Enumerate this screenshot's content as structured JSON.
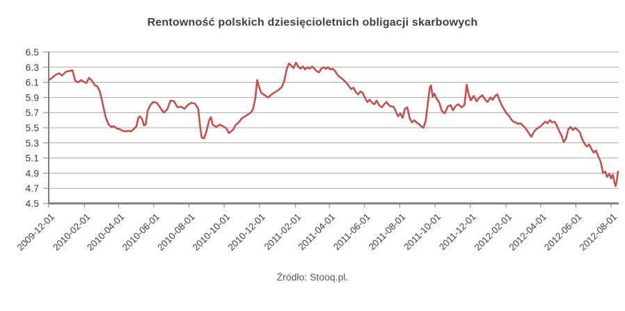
{
  "chart_data": {
    "type": "line",
    "title": "Rentowność polskich dziesięcioletnich obligacji skarbowych",
    "source": "Źródło: Stooq.pl.",
    "xlabel": "",
    "ylabel": "",
    "ylim": [
      4.5,
      6.5
    ],
    "yticks": [
      4.5,
      4.7,
      4.9,
      5.1,
      5.3,
      5.5,
      5.7,
      5.9,
      6.1,
      6.3,
      6.5
    ],
    "xticks": [
      "2009-12-01",
      "2010-02-01",
      "2010-04-01",
      "2010-06-01",
      "2010-08-01",
      "2010-10-01",
      "2010-12-01",
      "2011-02-01",
      "2011-04-01",
      "2011-06-01",
      "2011-08-01",
      "2011-10-01",
      "2011-12-01",
      "2012-02-01",
      "2012-04-01",
      "2012-06-01",
      "2012-08-01"
    ],
    "grid": "horizontal",
    "legend_position": "none",
    "colors": {
      "line": "#C0504D",
      "grid": "#A6A6A6",
      "axis": "#808080",
      "tick_text": "#3F3F3F",
      "title_text": "#3F3F3F",
      "source_text": "#595959"
    },
    "series": [
      {
        "name": "rentownosc-obligacji-10y",
        "color": "#C0504D",
        "points": [
          [
            "2009-12-01",
            6.13
          ],
          [
            "2009-12-07",
            6.16
          ],
          [
            "2009-12-13",
            6.2
          ],
          [
            "2009-12-19",
            6.22
          ],
          [
            "2009-12-24",
            6.19
          ],
          [
            "2009-12-31",
            6.24
          ],
          [
            "2010-01-06",
            6.25
          ],
          [
            "2010-01-11",
            6.26
          ],
          [
            "2010-01-16",
            6.12
          ],
          [
            "2010-01-21",
            6.1
          ],
          [
            "2010-01-26",
            6.13
          ],
          [
            "2010-01-30",
            6.11
          ],
          [
            "2010-02-04",
            6.09
          ],
          [
            "2010-02-09",
            6.16
          ],
          [
            "2010-02-14",
            6.12
          ],
          [
            "2010-02-19",
            6.06
          ],
          [
            "2010-02-23",
            6.05
          ],
          [
            "2010-02-28",
            5.97
          ],
          [
            "2010-03-05",
            5.8
          ],
          [
            "2010-03-10",
            5.63
          ],
          [
            "2010-03-15",
            5.54
          ],
          [
            "2010-03-20",
            5.51
          ],
          [
            "2010-03-24",
            5.52
          ],
          [
            "2010-03-29",
            5.49
          ],
          [
            "2010-04-03",
            5.48
          ],
          [
            "2010-04-08",
            5.46
          ],
          [
            "2010-04-13",
            5.45
          ],
          [
            "2010-04-18",
            5.46
          ],
          [
            "2010-04-22",
            5.45
          ],
          [
            "2010-04-27",
            5.48
          ],
          [
            "2010-05-02",
            5.52
          ],
          [
            "2010-05-05",
            5.63
          ],
          [
            "2010-05-08",
            5.65
          ],
          [
            "2010-05-12",
            5.61
          ],
          [
            "2010-05-15",
            5.53
          ],
          [
            "2010-05-18",
            5.54
          ],
          [
            "2010-05-21",
            5.72
          ],
          [
            "2010-05-26",
            5.8
          ],
          [
            "2010-05-31",
            5.84
          ],
          [
            "2010-06-06",
            5.83
          ],
          [
            "2010-06-12",
            5.77
          ],
          [
            "2010-06-18",
            5.7
          ],
          [
            "2010-06-24",
            5.74
          ],
          [
            "2010-06-30",
            5.86
          ],
          [
            "2010-07-06",
            5.85
          ],
          [
            "2010-07-12",
            5.77
          ],
          [
            "2010-07-18",
            5.78
          ],
          [
            "2010-07-24",
            5.75
          ],
          [
            "2010-07-30",
            5.8
          ],
          [
            "2010-08-05",
            5.83
          ],
          [
            "2010-08-11",
            5.82
          ],
          [
            "2010-08-17",
            5.75
          ],
          [
            "2010-08-20",
            5.54
          ],
          [
            "2010-08-23",
            5.37
          ],
          [
            "2010-08-27",
            5.36
          ],
          [
            "2010-08-31",
            5.45
          ],
          [
            "2010-09-05",
            5.6
          ],
          [
            "2010-09-08",
            5.64
          ],
          [
            "2010-09-11",
            5.54
          ],
          [
            "2010-09-17",
            5.51
          ],
          [
            "2010-09-23",
            5.54
          ],
          [
            "2010-09-29",
            5.52
          ],
          [
            "2010-10-05",
            5.49
          ],
          [
            "2010-10-09",
            5.43
          ],
          [
            "2010-10-13",
            5.45
          ],
          [
            "2010-10-17",
            5.48
          ],
          [
            "2010-10-21",
            5.54
          ],
          [
            "2010-10-26",
            5.57
          ],
          [
            "2010-10-31",
            5.62
          ],
          [
            "2010-11-04",
            5.64
          ],
          [
            "2010-11-10",
            5.67
          ],
          [
            "2010-11-16",
            5.7
          ],
          [
            "2010-11-20",
            5.75
          ],
          [
            "2010-11-24",
            5.9
          ],
          [
            "2010-11-27",
            6.13
          ],
          [
            "2010-11-30",
            6.05
          ],
          [
            "2010-12-04",
            5.96
          ],
          [
            "2010-12-10",
            5.93
          ],
          [
            "2010-12-16",
            5.9
          ],
          [
            "2010-12-22",
            5.94
          ],
          [
            "2010-12-28",
            5.97
          ],
          [
            "2011-01-03",
            6.0
          ],
          [
            "2011-01-09",
            6.04
          ],
          [
            "2011-01-13",
            6.12
          ],
          [
            "2011-01-17",
            6.27
          ],
          [
            "2011-01-21",
            6.35
          ],
          [
            "2011-01-25",
            6.32
          ],
          [
            "2011-01-29",
            6.29
          ],
          [
            "2011-02-02",
            6.36
          ],
          [
            "2011-02-06",
            6.31
          ],
          [
            "2011-02-10",
            6.28
          ],
          [
            "2011-02-14",
            6.31
          ],
          [
            "2011-02-18",
            6.27
          ],
          [
            "2011-02-22",
            6.3
          ],
          [
            "2011-02-26",
            6.28
          ],
          [
            "2011-03-02",
            6.31
          ],
          [
            "2011-03-06",
            6.28
          ],
          [
            "2011-03-10",
            6.25
          ],
          [
            "2011-03-14",
            6.23
          ],
          [
            "2011-03-18",
            6.28
          ],
          [
            "2011-03-22",
            6.3
          ],
          [
            "2011-03-26",
            6.28
          ],
          [
            "2011-03-30",
            6.3
          ],
          [
            "2011-04-03",
            6.27
          ],
          [
            "2011-04-07",
            6.28
          ],
          [
            "2011-04-11",
            6.25
          ],
          [
            "2011-04-15",
            6.2
          ],
          [
            "2011-04-19",
            6.17
          ],
          [
            "2011-04-23",
            6.15
          ],
          [
            "2011-04-27",
            6.12
          ],
          [
            "2011-05-01",
            6.09
          ],
          [
            "2011-05-05",
            6.05
          ],
          [
            "2011-05-09",
            6.01
          ],
          [
            "2011-05-13",
            6.03
          ],
          [
            "2011-05-17",
            5.97
          ],
          [
            "2011-05-21",
            5.94
          ],
          [
            "2011-05-25",
            5.98
          ],
          [
            "2011-05-29",
            5.96
          ],
          [
            "2011-06-02",
            5.89
          ],
          [
            "2011-06-06",
            5.84
          ],
          [
            "2011-06-10",
            5.87
          ],
          [
            "2011-06-14",
            5.83
          ],
          [
            "2011-06-18",
            5.81
          ],
          [
            "2011-06-22",
            5.86
          ],
          [
            "2011-06-26",
            5.8
          ],
          [
            "2011-07-01",
            5.77
          ],
          [
            "2011-07-05",
            5.81
          ],
          [
            "2011-07-09",
            5.84
          ],
          [
            "2011-07-13",
            5.8
          ],
          [
            "2011-07-17",
            5.78
          ],
          [
            "2011-07-21",
            5.78
          ],
          [
            "2011-07-25",
            5.72
          ],
          [
            "2011-07-29",
            5.65
          ],
          [
            "2011-08-02",
            5.69
          ],
          [
            "2011-08-06",
            5.63
          ],
          [
            "2011-08-10",
            5.75
          ],
          [
            "2011-08-14",
            5.77
          ],
          [
            "2011-08-18",
            5.63
          ],
          [
            "2011-08-22",
            5.57
          ],
          [
            "2011-08-26",
            5.6
          ],
          [
            "2011-08-30",
            5.57
          ],
          [
            "2011-09-03",
            5.55
          ],
          [
            "2011-09-07",
            5.52
          ],
          [
            "2011-09-11",
            5.5
          ],
          [
            "2011-09-15",
            5.59
          ],
          [
            "2011-09-19",
            5.84
          ],
          [
            "2011-09-22",
            6.03
          ],
          [
            "2011-09-24",
            6.06
          ],
          [
            "2011-09-27",
            5.91
          ],
          [
            "2011-09-30",
            5.95
          ],
          [
            "2011-10-04",
            5.88
          ],
          [
            "2011-10-08",
            5.84
          ],
          [
            "2011-10-13",
            5.72
          ],
          [
            "2011-10-18",
            5.69
          ],
          [
            "2011-10-23",
            5.78
          ],
          [
            "2011-10-28",
            5.8
          ],
          [
            "2011-11-01",
            5.73
          ],
          [
            "2011-11-06",
            5.79
          ],
          [
            "2011-11-11",
            5.81
          ],
          [
            "2011-11-16",
            5.77
          ],
          [
            "2011-11-21",
            5.8
          ],
          [
            "2011-11-25",
            6.07
          ],
          [
            "2011-11-28",
            5.95
          ],
          [
            "2011-12-02",
            5.86
          ],
          [
            "2011-12-07",
            5.92
          ],
          [
            "2011-12-12",
            5.85
          ],
          [
            "2011-12-17",
            5.9
          ],
          [
            "2011-12-22",
            5.93
          ],
          [
            "2011-12-27",
            5.87
          ],
          [
            "2011-12-31",
            5.84
          ],
          [
            "2012-01-05",
            5.9
          ],
          [
            "2012-01-09",
            5.87
          ],
          [
            "2012-01-13",
            5.92
          ],
          [
            "2012-01-17",
            5.94
          ],
          [
            "2012-01-21",
            5.86
          ],
          [
            "2012-01-25",
            5.79
          ],
          [
            "2012-01-29",
            5.74
          ],
          [
            "2012-02-02",
            5.69
          ],
          [
            "2012-02-06",
            5.66
          ],
          [
            "2012-02-10",
            5.61
          ],
          [
            "2012-02-14",
            5.58
          ],
          [
            "2012-02-18",
            5.57
          ],
          [
            "2012-02-22",
            5.55
          ],
          [
            "2012-02-26",
            5.56
          ],
          [
            "2012-03-01",
            5.53
          ],
          [
            "2012-03-05",
            5.5
          ],
          [
            "2012-03-09",
            5.46
          ],
          [
            "2012-03-13",
            5.41
          ],
          [
            "2012-03-16",
            5.38
          ],
          [
            "2012-03-20",
            5.44
          ],
          [
            "2012-03-24",
            5.48
          ],
          [
            "2012-03-28",
            5.5
          ],
          [
            "2012-04-01",
            5.52
          ],
          [
            "2012-04-05",
            5.55
          ],
          [
            "2012-04-09",
            5.58
          ],
          [
            "2012-04-13",
            5.56
          ],
          [
            "2012-04-17",
            5.6
          ],
          [
            "2012-04-21",
            5.57
          ],
          [
            "2012-04-25",
            5.58
          ],
          [
            "2012-04-29",
            5.53
          ],
          [
            "2012-05-03",
            5.46
          ],
          [
            "2012-05-07",
            5.4
          ],
          [
            "2012-05-11",
            5.31
          ],
          [
            "2012-05-15",
            5.36
          ],
          [
            "2012-05-19",
            5.48
          ],
          [
            "2012-05-23",
            5.51
          ],
          [
            "2012-05-27",
            5.47
          ],
          [
            "2012-05-31",
            5.5
          ],
          [
            "2012-06-04",
            5.47
          ],
          [
            "2012-06-08",
            5.44
          ],
          [
            "2012-06-12",
            5.35
          ],
          [
            "2012-06-16",
            5.29
          ],
          [
            "2012-06-20",
            5.25
          ],
          [
            "2012-06-24",
            5.28
          ],
          [
            "2012-06-28",
            5.22
          ],
          [
            "2012-07-02",
            5.17
          ],
          [
            "2012-07-06",
            5.2
          ],
          [
            "2012-07-10",
            5.12
          ],
          [
            "2012-07-14",
            5.05
          ],
          [
            "2012-07-18",
            4.9
          ],
          [
            "2012-07-22",
            4.92
          ],
          [
            "2012-07-25",
            4.85
          ],
          [
            "2012-07-29",
            4.89
          ],
          [
            "2012-08-01",
            4.83
          ],
          [
            "2012-08-04",
            4.88
          ],
          [
            "2012-08-07",
            4.77
          ],
          [
            "2012-08-09",
            4.73
          ],
          [
            "2012-08-11",
            4.8
          ],
          [
            "2012-08-13",
            4.92
          ]
        ]
      }
    ]
  }
}
